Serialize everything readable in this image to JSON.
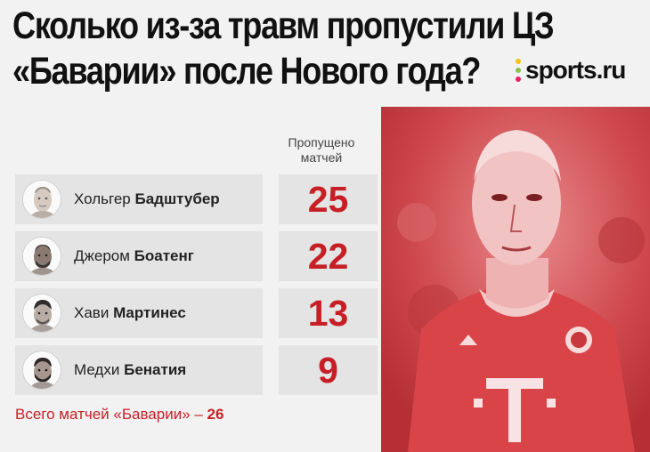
{
  "title": {
    "line1": "Сколько из-за травм пропустили ЦЗ",
    "line2": "«Баварии» после Нового года?"
  },
  "logo": {
    "text": "sports.ru",
    "dot_colors": [
      "#f4c20d",
      "#8bc34a",
      "#e91e63"
    ]
  },
  "colors": {
    "accent": "#c62026",
    "photo_tint": "#c8393d",
    "row_bg": "#e4e4e4",
    "background": "#f2f2f2"
  },
  "chart_data": {
    "type": "table",
    "value_header": "Пропущено матчей",
    "value_header_lines": [
      "Пропущено",
      "матчей"
    ],
    "rows": [
      {
        "first_name": "Хольгер",
        "last_name": "Бадштубер",
        "value": 25
      },
      {
        "first_name": "Джером",
        "last_name": "Боатенг",
        "value": 22
      },
      {
        "first_name": "Хави",
        "last_name": "Мартинес",
        "value": 13
      },
      {
        "first_name": "Медхи",
        "last_name": "Бенатия",
        "value": 9
      }
    ]
  },
  "footer": {
    "label": "Всего матчей «Баварии» – ",
    "value": "26"
  }
}
